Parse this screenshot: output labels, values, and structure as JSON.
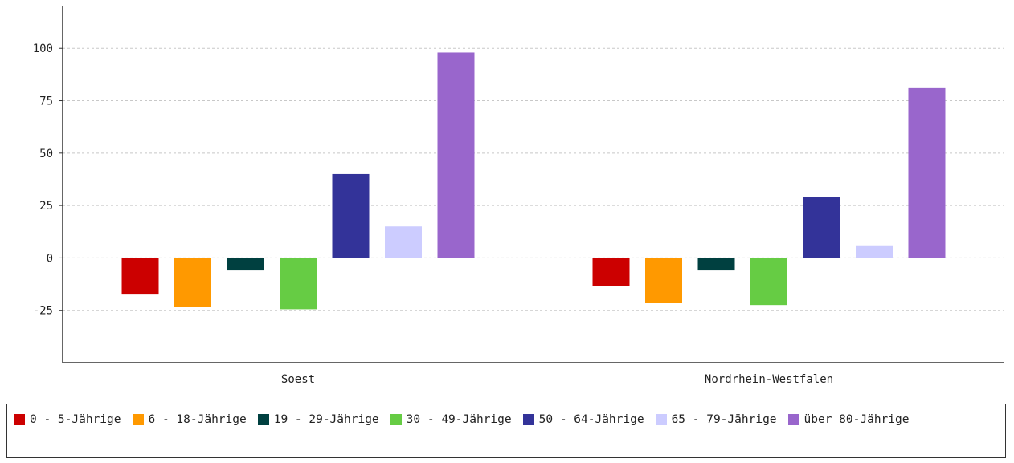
{
  "chart_data": {
    "type": "bar",
    "categories": [
      "Soest",
      "Nordrhein-Westfalen"
    ],
    "series": [
      {
        "name": "0 - 5-Jährige",
        "color": "#cc0000",
        "values": [
          -17.5,
          -13.5
        ]
      },
      {
        "name": "6 - 18-Jährige",
        "color": "#ff9900",
        "values": [
          -23.5,
          -21.5
        ]
      },
      {
        "name": "19 - 29-Jährige",
        "color": "#004040",
        "values": [
          -6,
          -6
        ]
      },
      {
        "name": "30 - 49-Jährige",
        "color": "#66cc44",
        "values": [
          -24.5,
          -22.5
        ]
      },
      {
        "name": "50 - 64-Jährige",
        "color": "#333399",
        "values": [
          40,
          29
        ]
      },
      {
        "name": "65 - 79-Jährige",
        "color": "#ccccff",
        "values": [
          15,
          6
        ]
      },
      {
        "name": "über 80-Jährige",
        "color": "#9966cc",
        "values": [
          98,
          81
        ]
      }
    ],
    "yticks": [
      -25,
      0,
      25,
      50,
      75,
      100
    ],
    "ylim": [
      -50,
      120
    ],
    "grid": true,
    "legend_position": "bottom",
    "title": "",
    "xlabel": "",
    "ylabel": ""
  }
}
